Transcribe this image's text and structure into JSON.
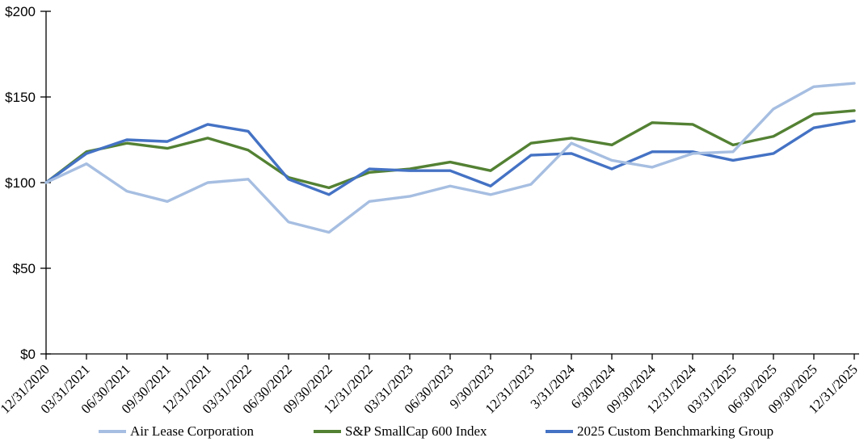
{
  "chart_data": {
    "type": "line",
    "title": "",
    "xlabel": "",
    "ylabel": "",
    "grid": false,
    "legend_position": "bottom",
    "x_categories": [
      "12/31/2020",
      "03/31/2021",
      "06/30/2021",
      "09/30/2021",
      "12/31/2021",
      "03/31/2022",
      "06/30/2022",
      "09/30/2022",
      "12/31/2022",
      "03/31/2023",
      "06/30/2023",
      "9/30/2023",
      "12/31/2023",
      "3/31/2024",
      "6/30/2024",
      "09/30/2024",
      "12/31/2024",
      "03/31/2025",
      "06/30/2025",
      "09/30/2025",
      "12/31/2025"
    ],
    "series": [
      {
        "name": "Air Lease Corporation",
        "color": "#A6BEE1",
        "values": [
          100,
          111,
          95,
          89,
          100,
          102,
          77,
          71,
          89,
          92,
          98,
          93,
          99,
          123,
          113,
          109,
          117,
          118,
          143,
          156,
          158
        ]
      },
      {
        "name": "S&P SmallCap 600 Index",
        "color": "#538133",
        "values": [
          100,
          118,
          123,
          120,
          126,
          119,
          103,
          97,
          106,
          108,
          112,
          107,
          123,
          126,
          122,
          135,
          134,
          122,
          127,
          140,
          142
        ]
      },
      {
        "name": "2025 Custom Benchmarking Group",
        "color": "#4472C4",
        "values": [
          100,
          117,
          125,
          124,
          134,
          130,
          102,
          93,
          108,
          107,
          107,
          98,
          116,
          117,
          108,
          118,
          118,
          113,
          117,
          132,
          136
        ]
      }
    ],
    "y_axis": {
      "min": 0,
      "max": 200,
      "tick_step": 50,
      "tick_labels": [
        "$0",
        "$50",
        "$100",
        "$150",
        "$200"
      ]
    },
    "axis_color": "#000000"
  }
}
